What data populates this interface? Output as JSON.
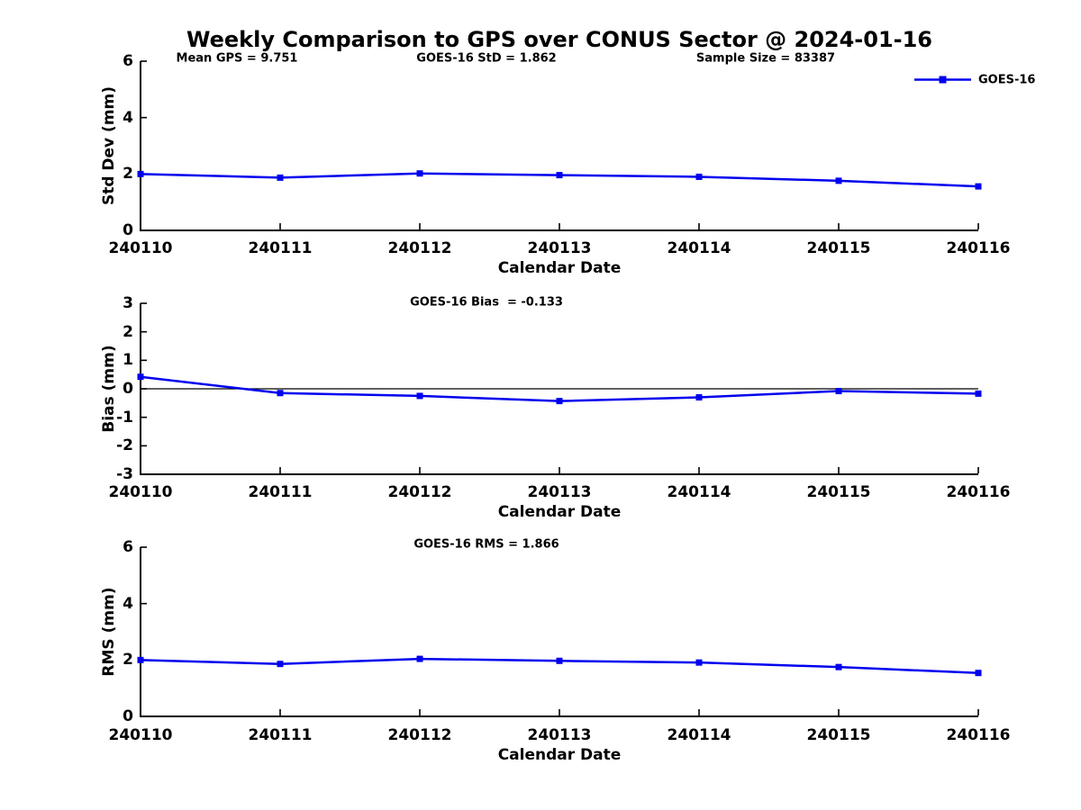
{
  "title": "Weekly Comparison to GPS over CONUS Sector @ 2024-01-16",
  "legend": {
    "label": "GOES-16",
    "color": "#0000EE"
  },
  "chart_data": [
    {
      "type": "line",
      "title": "",
      "annotations": [
        "Mean GPS = 9.751",
        "GOES-16 StD = 1.862",
        "Sample Size = 83387"
      ],
      "categories": [
        "240110",
        "240111",
        "240112",
        "240113",
        "240114",
        "240115",
        "240116"
      ],
      "series": [
        {
          "name": "GOES-16",
          "color": "#0000EE",
          "marker": "square",
          "values": [
            2.0,
            1.87,
            2.02,
            1.96,
            1.9,
            1.76,
            1.56
          ]
        }
      ],
      "xlabel": "Calendar Date",
      "ylabel": "Std Dev (mm)",
      "ylim": [
        0,
        6
      ],
      "yticks": [
        0,
        2,
        4,
        6
      ],
      "grid": false,
      "legend_position": "upper-right",
      "zero_line": false
    },
    {
      "type": "line",
      "title": "GOES-16 Bias  = -0.133",
      "annotations": [],
      "categories": [
        "240110",
        "240111",
        "240112",
        "240113",
        "240114",
        "240115",
        "240116"
      ],
      "series": [
        {
          "name": "GOES-16",
          "color": "#0000EE",
          "marker": "square",
          "values": [
            0.42,
            -0.15,
            -0.25,
            -0.43,
            -0.3,
            -0.08,
            -0.17
          ]
        }
      ],
      "xlabel": "Calendar Date",
      "ylabel": "Bias (mm)",
      "ylim": [
        -3,
        3
      ],
      "yticks": [
        -3,
        -2,
        -1,
        0,
        1,
        2,
        3
      ],
      "grid": false,
      "legend_position": "none",
      "zero_line": true
    },
    {
      "type": "line",
      "title": "GOES-16 RMS = 1.866",
      "annotations": [],
      "categories": [
        "240110",
        "240111",
        "240112",
        "240113",
        "240114",
        "240115",
        "240116"
      ],
      "series": [
        {
          "name": "GOES-16",
          "color": "#0000EE",
          "marker": "square",
          "values": [
            2.0,
            1.86,
            2.04,
            1.97,
            1.91,
            1.75,
            1.54
          ]
        }
      ],
      "xlabel": "Calendar Date",
      "ylabel": "RMS (mm)",
      "ylim": [
        0,
        6
      ],
      "yticks": [
        0,
        2,
        4,
        6
      ],
      "grid": false,
      "legend_position": "none",
      "zero_line": false
    }
  ]
}
